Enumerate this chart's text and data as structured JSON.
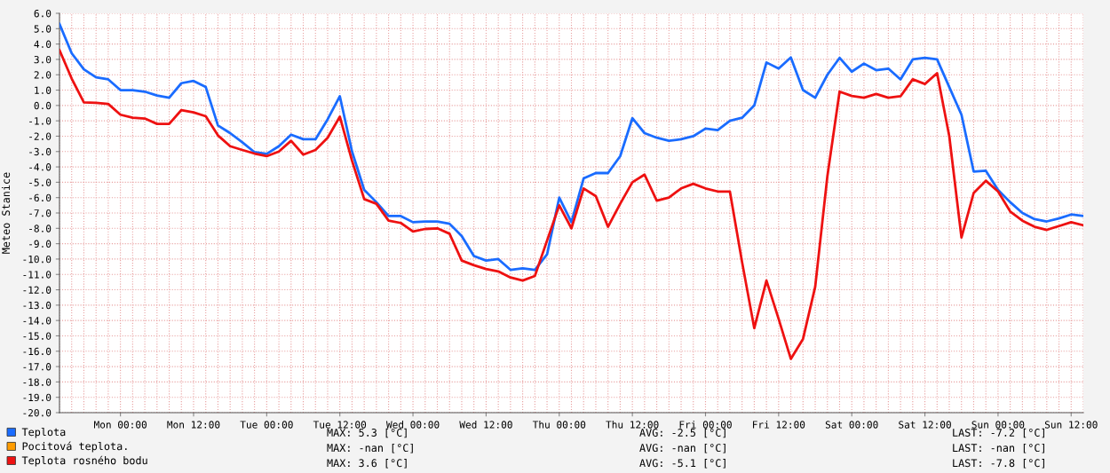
{
  "chart_data": {
    "type": "line",
    "ylabel": "Meteo Stanice",
    "categories": [
      null,
      null,
      null,
      null,
      null,
      "Mon 00:00",
      null,
      null,
      null,
      null,
      null,
      "Mon 12:00",
      null,
      null,
      null,
      null,
      null,
      "Tue 00:00",
      null,
      null,
      null,
      null,
      null,
      "Tue 12:00",
      null,
      null,
      null,
      null,
      null,
      "Wed 00:00",
      null,
      null,
      null,
      null,
      null,
      "Wed 12:00",
      null,
      null,
      null,
      null,
      null,
      "Thu 00:00",
      null,
      null,
      null,
      null,
      null,
      "Thu 12:00",
      null,
      null,
      null,
      null,
      null,
      "Fri 00:00",
      null,
      null,
      null,
      null,
      null,
      "Fri 12:00",
      null,
      null,
      null,
      null,
      null,
      "Sat 00:00",
      null,
      null,
      null,
      null,
      null,
      "Sat 12:00",
      null,
      null,
      null,
      null,
      null,
      "Sun 00:00",
      null,
      null,
      null,
      null,
      null,
      "Sun 12:00",
      null
    ],
    "ylim": [
      -20,
      6
    ],
    "yticks": [
      {
        "value": 6,
        "label": "6.0"
      },
      {
        "value": 5,
        "label": "5.0"
      },
      {
        "value": 4,
        "label": "4.0"
      },
      {
        "value": 3,
        "label": "3.0"
      },
      {
        "value": 2,
        "label": "2.0"
      },
      {
        "value": 1,
        "label": "1.0"
      },
      {
        "value": 0,
        "label": "0.0"
      },
      {
        "value": -1,
        "label": "-1.0"
      },
      {
        "value": -2,
        "label": "-2.0"
      },
      {
        "value": -3,
        "label": "-3.0"
      },
      {
        "value": -4,
        "label": "-4.0"
      },
      {
        "value": -5,
        "label": "-5.0"
      },
      {
        "value": -6,
        "label": "-6.0"
      },
      {
        "value": -7,
        "label": "-7.0"
      },
      {
        "value": -8,
        "label": "-8.0"
      },
      {
        "value": -9,
        "label": "-9.0"
      },
      {
        "value": -10,
        "label": "-10.0"
      },
      {
        "value": -11,
        "label": "-11.0"
      },
      {
        "value": -12,
        "label": "-12.0"
      },
      {
        "value": -13,
        "label": "-13.0"
      },
      {
        "value": -14,
        "label": "-14.0"
      },
      {
        "value": -15,
        "label": "-15.0"
      },
      {
        "value": -16,
        "label": "-16.0"
      },
      {
        "value": -17,
        "label": "-17.0"
      },
      {
        "value": -18,
        "label": "-18.0"
      },
      {
        "value": -19,
        "label": "-19.0"
      },
      {
        "value": -20,
        "label": "-20.0"
      }
    ],
    "grid": true,
    "legend": "bottom left",
    "marker": "none",
    "line_style": "solid",
    "series": [
      {
        "name": "Teplota",
        "color": "#1a6cff",
        "values": [
          5.3,
          3.4,
          2.35,
          1.83,
          1.7,
          1.0,
          1.0,
          0.9,
          0.65,
          0.5,
          1.45,
          1.6,
          1.2,
          -1.3,
          -1.8,
          -2.4,
          -3.04,
          -3.15,
          -2.65,
          -1.9,
          -2.2,
          -2.2,
          -0.9,
          0.6,
          -3.0,
          -5.5,
          -6.3,
          -7.2,
          -7.2,
          -7.6,
          -7.56,
          -7.55,
          -7.7,
          -8.5,
          -9.8,
          -10.1,
          -10.0,
          -10.7,
          -10.6,
          -10.7,
          -9.7,
          -6.0,
          -7.6,
          -4.75,
          -4.4,
          -4.4,
          -3.3,
          -0.83,
          -1.8,
          -2.1,
          -2.3,
          -2.2,
          -2.0,
          -1.5,
          -1.6,
          -1.0,
          -0.8,
          0.0,
          2.8,
          2.4,
          3.13,
          1.0,
          0.5,
          2.0,
          3.1,
          2.2,
          2.73,
          2.3,
          2.4,
          1.7,
          3.0,
          3.1,
          3.0,
          1.2,
          -0.6,
          -4.3,
          -4.25,
          -5.5,
          -6.3,
          -7.0,
          -7.4,
          -7.55,
          -7.35,
          -7.1,
          -7.2
        ]
      },
      {
        "name": "Pocitová teplota.",
        "color": "#ff9c00",
        "values": [
          null,
          null,
          null,
          null,
          null,
          null,
          null,
          null,
          null,
          null,
          null,
          null,
          null,
          null,
          null,
          null,
          null,
          null,
          null,
          null,
          null,
          null,
          null,
          null,
          null,
          null,
          null,
          null,
          null,
          null,
          null,
          null,
          null,
          null,
          null,
          null,
          null,
          null,
          null,
          null,
          null,
          null,
          null,
          null,
          null,
          null,
          null,
          null,
          null,
          null,
          null,
          null,
          null,
          null,
          null,
          null,
          null,
          null,
          null,
          null,
          null,
          null,
          null,
          null,
          null,
          null,
          null,
          null,
          null,
          null,
          null,
          null,
          null,
          null,
          null,
          null,
          null,
          null,
          null,
          null,
          null,
          null,
          null,
          null,
          null
        ]
      },
      {
        "name": "Teplota rosného bodu",
        "color": "#ee1111",
        "values": [
          3.6,
          1.75,
          0.2,
          0.17,
          0.1,
          -0.6,
          -0.8,
          -0.85,
          -1.2,
          -1.2,
          -0.3,
          -0.45,
          -0.7,
          -1.95,
          -2.65,
          -2.9,
          -3.13,
          -3.3,
          -3.0,
          -2.3,
          -3.2,
          -2.9,
          -2.1,
          -0.73,
          -3.6,
          -6.1,
          -6.4,
          -7.5,
          -7.65,
          -8.2,
          -8.04,
          -8.0,
          -8.35,
          -10.1,
          -10.4,
          -10.65,
          -10.8,
          -11.2,
          -11.4,
          -11.1,
          -8.8,
          -6.5,
          -8.0,
          -5.4,
          -5.9,
          -7.9,
          -6.4,
          -5.0,
          -4.5,
          -6.2,
          -6.0,
          -5.4,
          -5.1,
          -5.4,
          -5.6,
          -5.6,
          -10.2,
          -14.5,
          -11.4,
          -13.9,
          -16.5,
          -15.2,
          -11.8,
          -4.6,
          0.9,
          0.62,
          0.5,
          0.75,
          0.5,
          0.6,
          1.7,
          1.4,
          2.1,
          -2.0,
          -8.6,
          -5.7,
          -4.9,
          -5.6,
          -6.9,
          -7.5,
          -7.9,
          -8.1,
          -7.85,
          -7.6,
          -7.8
        ]
      }
    ],
    "annotations": [
      "MAX: 5.3 [°C]",
      "AVG: -2.5 [°C]",
      "LAST: -7.2 [°C]",
      "MAX: -nan [°C]",
      "AVG: -nan [°C]",
      "LAST: -nan [°C]",
      "MAX: 3.6 [°C]",
      "AVG: -5.1 [°C]",
      "LAST: -7.8 [°C]"
    ]
  }
}
